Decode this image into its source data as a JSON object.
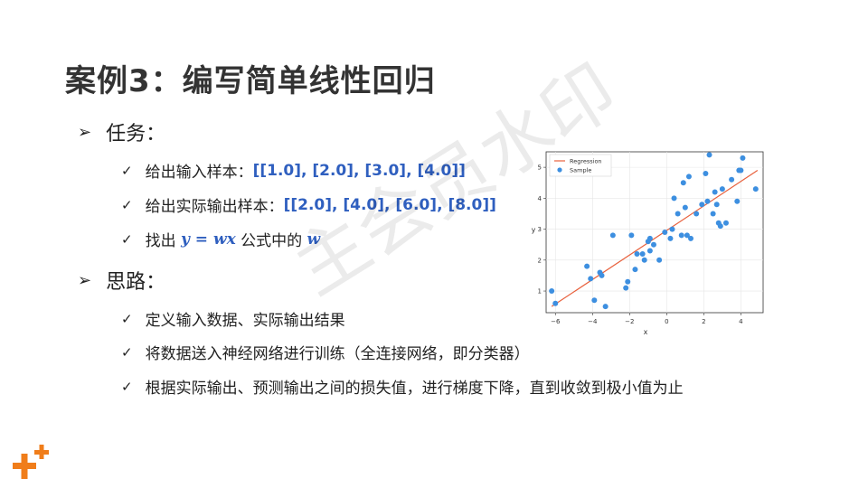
{
  "slide": {
    "title": "案例3：编写简单线性回归",
    "watermark": "主会员水印"
  },
  "sections": [
    {
      "label": "任务：",
      "items": [
        {
          "text": "给出输入样本：",
          "highlight": "[[1.0], [2.0], [3.0], [4.0]]"
        },
        {
          "text": "给出实际输出样本：",
          "highlight": "[[2.0], [4.0], [6.0], [8.0]]"
        },
        {
          "pre": "找出 ",
          "math": "y = wx",
          "mid": " 公式中的 ",
          "math2": "w"
        }
      ]
    },
    {
      "label": "思路：",
      "items": [
        {
          "text": "定义输入数据、实际输出结果"
        },
        {
          "text": "将数据送入神经网络进行训练（全连接网络，即分类器）"
        },
        {
          "text": "根据实际输出、预测输出之间的损失值，进行梯度下降，直到收敛到极小值为止"
        }
      ]
    }
  ],
  "colors": {
    "accent": "#2f5fbf",
    "regression": "#e8603c",
    "sample": "#3d8fe0",
    "logo": "#f07d1a"
  },
  "chart_data": {
    "type": "scatter",
    "xlabel": "x",
    "ylabel": "y",
    "xlim": [
      -6.5,
      5.2
    ],
    "ylim": [
      0.3,
      5.5
    ],
    "xticks": [
      -6,
      -4,
      -2,
      0,
      2,
      4
    ],
    "yticks": [
      1,
      2,
      3,
      4,
      5
    ],
    "grid": true,
    "legend_position": "top-left",
    "series": [
      {
        "name": "Regression",
        "kind": "line",
        "x": [
          -6.2,
          4.9
        ],
        "y": [
          0.5,
          4.9
        ]
      },
      {
        "name": "Sample",
        "kind": "points",
        "x": [
          -6.2,
          -6.0,
          -4.3,
          -4.1,
          -3.9,
          -3.6,
          -3.5,
          -3.3,
          -2.9,
          -2.2,
          -2.1,
          -1.9,
          -1.7,
          -1.6,
          -1.3,
          -1.2,
          -1.0,
          -0.9,
          -0.9,
          -0.7,
          -0.4,
          -0.1,
          0.2,
          0.3,
          0.4,
          0.6,
          0.8,
          0.9,
          1.0,
          1.1,
          1.2,
          1.3,
          1.6,
          1.9,
          2.1,
          2.2,
          2.3,
          2.5,
          2.6,
          2.7,
          2.8,
          2.9,
          3.0,
          3.2,
          3.5,
          3.8,
          3.9,
          4.0,
          4.1,
          4.8
        ],
        "y": [
          1.0,
          0.6,
          1.8,
          1.4,
          0.7,
          1.6,
          1.5,
          0.5,
          2.8,
          1.1,
          1.3,
          2.8,
          1.7,
          2.2,
          2.2,
          2.0,
          2.6,
          2.7,
          2.3,
          2.5,
          2.0,
          2.9,
          2.7,
          3.0,
          4.0,
          3.5,
          2.8,
          4.5,
          3.7,
          2.8,
          4.7,
          2.7,
          3.5,
          3.8,
          4.8,
          3.9,
          5.4,
          3.5,
          4.2,
          3.8,
          3.2,
          3.1,
          4.3,
          3.2,
          4.6,
          3.9,
          4.9,
          4.9,
          5.3,
          4.3
        ]
      }
    ]
  }
}
